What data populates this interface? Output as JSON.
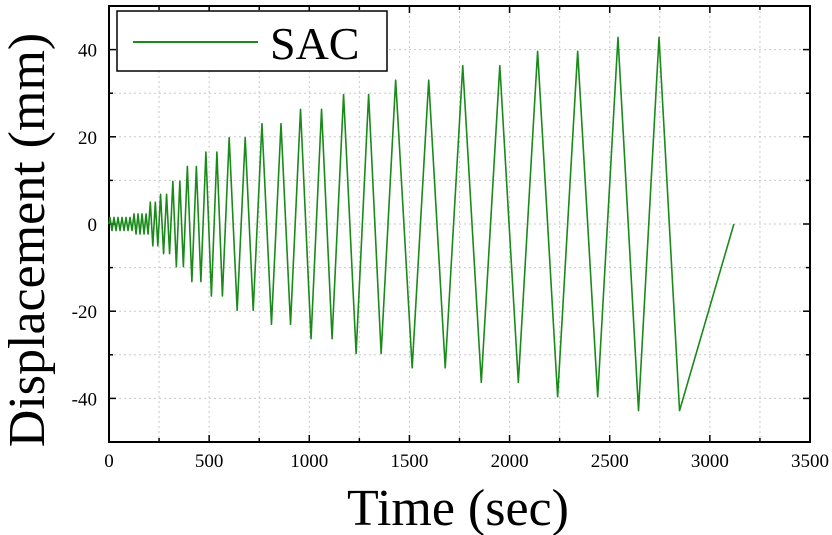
{
  "chart_data": {
    "type": "line",
    "xlabel": "Time (sec)",
    "ylabel": "Displacement (mm)",
    "xlim": [
      0,
      3500
    ],
    "ylim": [
      -50,
      50
    ],
    "x_ticks": [
      0,
      500,
      1000,
      1500,
      2000,
      2500,
      3000,
      3500
    ],
    "y_ticks": [
      -40,
      -20,
      0,
      20,
      40
    ],
    "grid": true,
    "legend_position": "top-left",
    "series": [
      {
        "name": "SAC",
        "color": "#1a8a1a",
        "protocol_cycles": [
          {
            "amplitude": 1.5,
            "count": 6,
            "period": 20
          },
          {
            "amplitude": 2.3,
            "count": 4,
            "period": 20
          },
          {
            "amplitude": 5.0,
            "count": 2,
            "period": 25
          },
          {
            "amplitude": 6.8,
            "count": 2,
            "period": 30
          },
          {
            "amplitude": 9.8,
            "count": 2,
            "period": 35
          },
          {
            "amplitude": 13.2,
            "count": 2,
            "period": 45
          },
          {
            "amplitude": 16.5,
            "count": 2,
            "period": 55
          },
          {
            "amplitude": 19.8,
            "count": 2,
            "period": 80
          },
          {
            "amplitude": 23.0,
            "count": 2,
            "period": 95
          },
          {
            "amplitude": 26.3,
            "count": 2,
            "period": 105
          },
          {
            "amplitude": 29.7,
            "count": 2,
            "period": 125
          },
          {
            "amplitude": 33.0,
            "count": 2,
            "period": 165
          },
          {
            "amplitude": 36.3,
            "count": 2,
            "period": 185
          },
          {
            "amplitude": 39.6,
            "count": 2,
            "period": 200
          },
          {
            "amplitude": 42.8,
            "count": 2,
            "period": 205
          }
        ],
        "end_time": 3120
      }
    ]
  }
}
